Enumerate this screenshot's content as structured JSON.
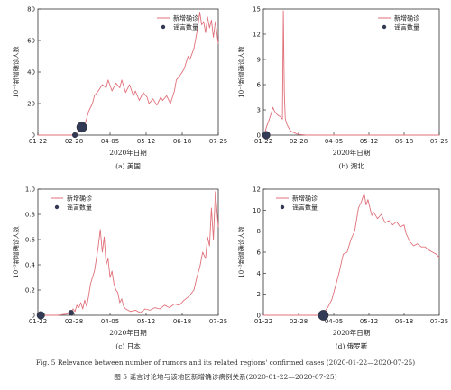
{
  "figure": {
    "caption_en": "Fig. 5   Relevance between number of rumors and its related regions' confirmed cases (2020-01-22—2020-07-25)",
    "caption_zh": "图 5   谣言讨论地与该地区新增确诊病例关系(2020-01-22—2020-07-25)"
  },
  "colors": {
    "line": "#e0707a",
    "dot": "#333a55"
  },
  "chart_data": [
    {
      "type": "line",
      "caption": "(a) 美国",
      "xlabel": "2020年日期",
      "ylabel": "10⁻³新增确诊人数",
      "x_ticks": [
        "01-22",
        "02-28",
        "04-05",
        "05-12",
        "06-18",
        "07-25"
      ],
      "xlim": [
        0,
        185
      ],
      "ylim": [
        0,
        80
      ],
      "y_ticks": [
        0,
        20,
        40,
        60,
        80
      ],
      "legend": [
        "新增确诊",
        "谣言数量"
      ],
      "legend_position": "top-right",
      "series": [
        {
          "name": "新增确诊",
          "x": [
            0,
            36,
            40,
            44,
            48,
            52,
            56,
            58,
            62,
            66,
            70,
            72,
            76,
            80,
            84,
            86,
            90,
            94,
            98,
            100,
            104,
            108,
            112,
            114,
            118,
            122,
            126,
            128,
            132,
            136,
            140,
            142,
            146,
            150,
            154,
            156,
            160,
            163,
            166,
            168,
            170,
            172,
            174,
            176,
            178,
            180,
            182,
            185
          ],
          "y": [
            0,
            0,
            1,
            3,
            6,
            15,
            20,
            25,
            28,
            32,
            30,
            35,
            28,
            33,
            30,
            35,
            27,
            32,
            25,
            28,
            22,
            27,
            24,
            20,
            23,
            19,
            24,
            22,
            25,
            20,
            28,
            35,
            38,
            42,
            50,
            48,
            55,
            65,
            78,
            70,
            72,
            65,
            75,
            68,
            73,
            62,
            72,
            58
          ]
        }
      ],
      "rumors": [
        {
          "x": 45,
          "y": 5,
          "size": 3
        },
        {
          "x": 38,
          "y": 0,
          "size": 1
        }
      ]
    },
    {
      "type": "line",
      "caption": "(b) 湖北",
      "xlabel": "2020年日期",
      "ylabel": "10⁻³新增确诊人数",
      "x_ticks": [
        "01-22",
        "02-28",
        "04-05",
        "05-12",
        "06-18",
        "07-25"
      ],
      "xlim": [
        0,
        185
      ],
      "ylim": [
        0,
        15
      ],
      "y_ticks": [
        0,
        3,
        6,
        9,
        12,
        15
      ],
      "legend": [
        "新增确诊",
        "谣言数量"
      ],
      "legend_position": "top-right",
      "series": [
        {
          "name": "新增确诊",
          "x": [
            0,
            2,
            4,
            6,
            8,
            10,
            12,
            14,
            16,
            18,
            20,
            21,
            22,
            23,
            24,
            26,
            28,
            30,
            32,
            34,
            36,
            40,
            45,
            185
          ],
          "y": [
            0,
            0.5,
            1.2,
            1.8,
            2.5,
            3.3,
            2.8,
            2.5,
            2.3,
            2.2,
            1.9,
            14.8,
            5,
            2.0,
            1.5,
            1.0,
            0.6,
            0.4,
            0.3,
            0.2,
            0.1,
            0.05,
            0,
            0
          ]
        }
      ],
      "rumors": [
        {
          "x": 3,
          "y": 0,
          "size": 2
        }
      ]
    },
    {
      "type": "line",
      "caption": "(c) 日本",
      "xlabel": "2020年日期",
      "ylabel": "10⁻³新增确诊人数",
      "x_ticks": [
        "01-22",
        "02-28",
        "04-05",
        "05-12",
        "06-18",
        "07-25"
      ],
      "xlim": [
        0,
        185
      ],
      "ylim": [
        0,
        1.0
      ],
      "y_ticks": [
        0,
        0.2,
        0.4,
        0.6,
        0.8,
        1.0
      ],
      "legend": [
        "新增确诊",
        "谣言数量"
      ],
      "legend_position": "top-left",
      "series": [
        {
          "name": "新增确诊",
          "x": [
            0,
            20,
            30,
            34,
            36,
            38,
            40,
            42,
            44,
            46,
            48,
            50,
            52,
            54,
            56,
            58,
            60,
            62,
            64,
            66,
            68,
            70,
            72,
            74,
            76,
            78,
            80,
            82,
            84,
            86,
            88,
            90,
            95,
            100,
            105,
            110,
            115,
            120,
            125,
            130,
            135,
            140,
            145,
            150,
            155,
            160,
            163,
            166,
            169,
            172,
            174,
            176,
            178,
            180,
            182,
            185
          ],
          "y": [
            0,
            0,
            0.01,
            0.02,
            0.05,
            0.03,
            0.08,
            0.06,
            0.1,
            0.05,
            0.12,
            0.07,
            0.15,
            0.25,
            0.3,
            0.35,
            0.45,
            0.55,
            0.68,
            0.5,
            0.62,
            0.4,
            0.45,
            0.3,
            0.35,
            0.25,
            0.2,
            0.18,
            0.1,
            0.13,
            0.07,
            0.05,
            0.03,
            0.04,
            0.02,
            0.05,
            0.04,
            0.06,
            0.05,
            0.08,
            0.06,
            0.09,
            0.08,
            0.12,
            0.15,
            0.2,
            0.3,
            0.38,
            0.5,
            0.45,
            0.62,
            0.55,
            0.85,
            0.6,
            0.98,
            0.7
          ]
        }
      ],
      "rumors": [
        {
          "x": 3,
          "y": 0,
          "size": 2
        },
        {
          "x": 34,
          "y": 0.02,
          "size": 1
        }
      ]
    },
    {
      "type": "line",
      "caption": "(d) 俄罗斯",
      "xlabel": "2020年日期",
      "ylabel": "10⁻³新增确诊人数",
      "x_ticks": [
        "01-22",
        "02-28",
        "04-05",
        "05-12",
        "06-18",
        "07-25"
      ],
      "xlim": [
        0,
        185
      ],
      "ylim": [
        0,
        12
      ],
      "y_ticks": [
        0,
        2,
        4,
        6,
        8,
        10,
        12
      ],
      "legend": [
        "新增确诊",
        "谣言数量"
      ],
      "legend_position": "top-left",
      "series": [
        {
          "name": "新增确诊",
          "x": [
            0,
            60,
            64,
            68,
            72,
            76,
            80,
            84,
            88,
            92,
            96,
            100,
            103,
            106,
            108,
            110,
            112,
            114,
            116,
            120,
            124,
            128,
            132,
            136,
            140,
            144,
            148,
            150,
            154,
            158,
            162,
            166,
            170,
            174,
            178,
            182,
            185
          ],
          "y": [
            0,
            0,
            0.3,
            0.8,
            1.5,
            2.8,
            4.2,
            5.8,
            6.0,
            7.2,
            8.0,
            10.2,
            10.8,
            11.6,
            10.5,
            11.0,
            10.2,
            9.5,
            9.8,
            9.2,
            9.6,
            8.8,
            9.0,
            8.6,
            8.9,
            8.4,
            8.6,
            7.8,
            7.0,
            6.6,
            6.8,
            6.5,
            6.5,
            6.2,
            6.0,
            5.8,
            5.5
          ]
        }
      ],
      "rumors": [
        {
          "x": 63,
          "y": 0,
          "size": 3
        }
      ]
    }
  ]
}
